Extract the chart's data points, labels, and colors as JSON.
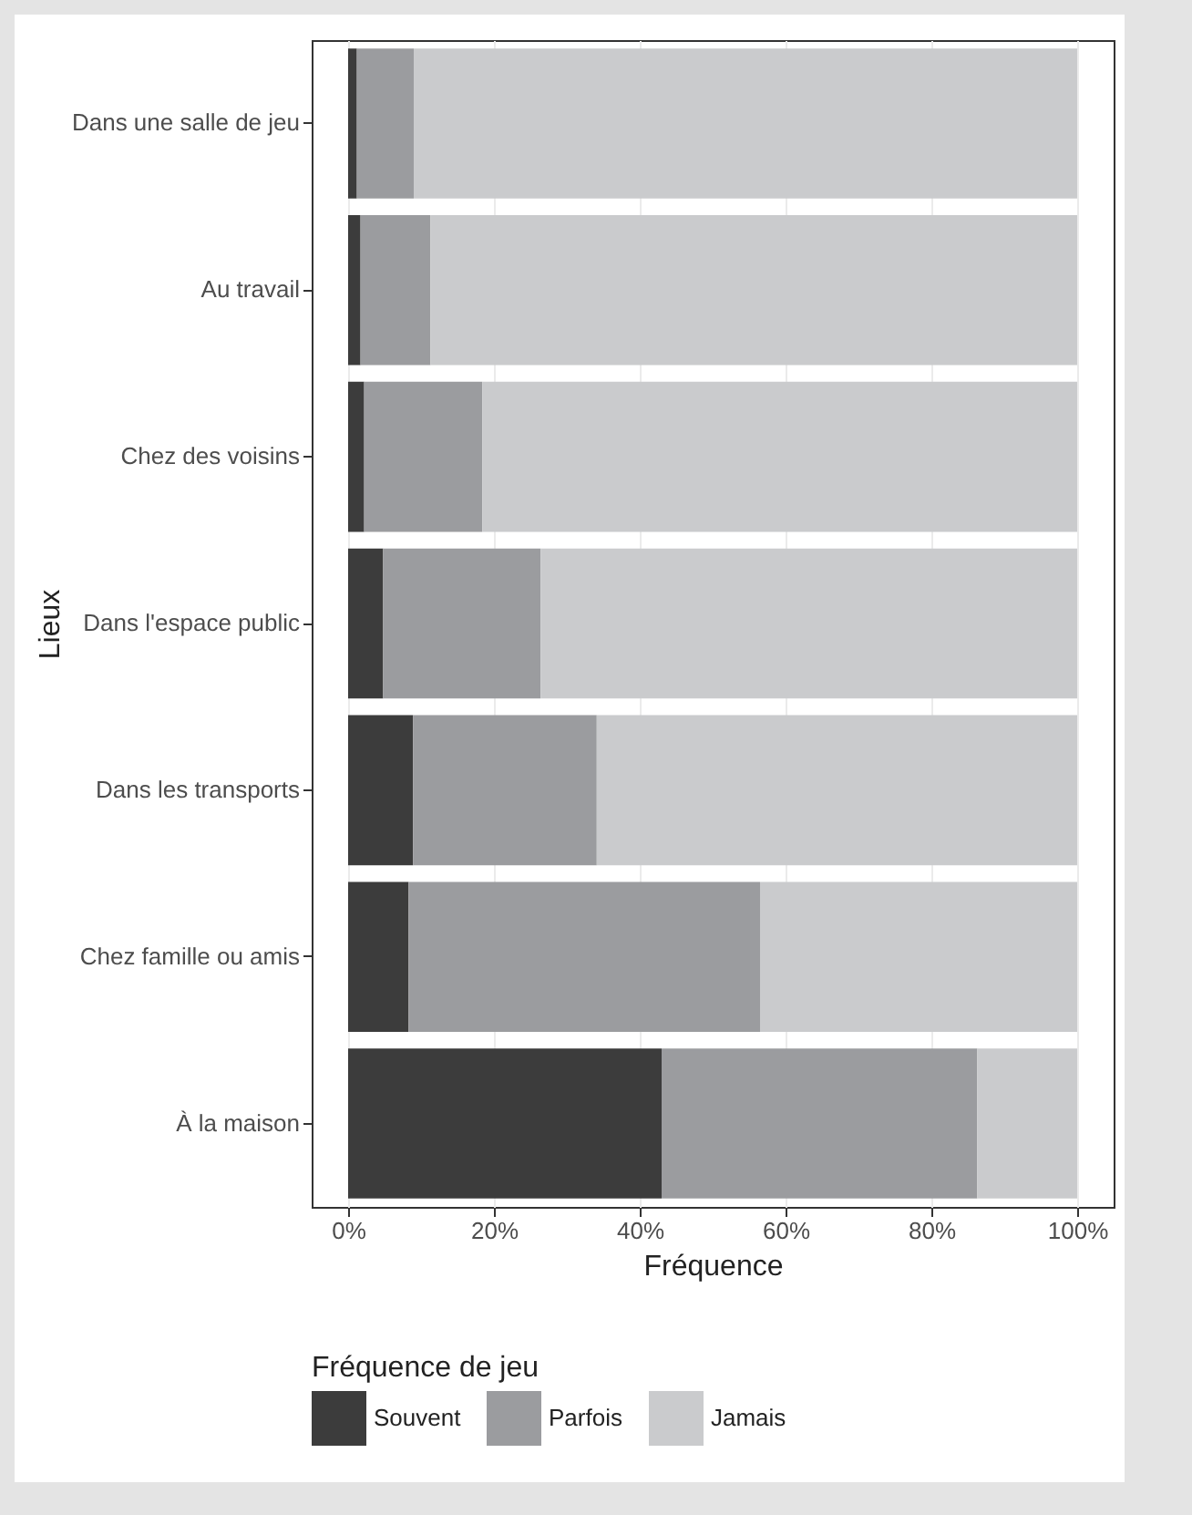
{
  "chart_data": {
    "type": "bar",
    "orientation": "horizontal",
    "stacked": true,
    "xlabel": "Fréquence",
    "ylabel": "Lieux",
    "legend_title": "Fréquence de jeu",
    "legend": "bottom",
    "grid": true,
    "categories": [
      "Dans une salle de jeu",
      "Au travail",
      "Chez des voisins",
      "Dans l'espace public",
      "Dans les transports",
      "Chez famille ou amis",
      "À la maison"
    ],
    "series": [
      {
        "name": "Souvent",
        "color": "#3c3c3c",
        "values": [
          1.2,
          1.7,
          2.2,
          4.8,
          8.9,
          8.3,
          43.0
        ]
      },
      {
        "name": "Parfois",
        "color": "#9b9c9f",
        "values": [
          7.8,
          9.6,
          16.2,
          21.6,
          25.2,
          48.2,
          43.3
        ]
      },
      {
        "name": "Jamais",
        "color": "#cacbcd",
        "values": [
          91.0,
          88.7,
          81.6,
          73.6,
          65.9,
          43.5,
          13.7
        ]
      }
    ],
    "xlim": [
      -5,
      105
    ],
    "xticks": [
      {
        "value": 0,
        "label": "0%"
      },
      {
        "value": 20,
        "label": "20%"
      },
      {
        "value": 40,
        "label": "40%"
      },
      {
        "value": 60,
        "label": "60%"
      },
      {
        "value": 80,
        "label": "80%"
      },
      {
        "value": 100,
        "label": "100%"
      }
    ]
  }
}
